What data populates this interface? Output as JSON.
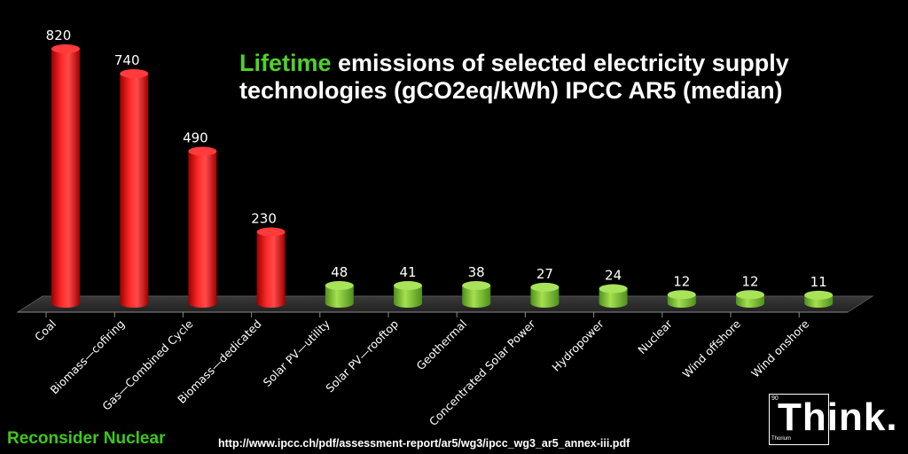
{
  "chart_data": {
    "type": "bar",
    "title_highlight": "Lifetime",
    "title_rest": " emissions of selected electricity supply technologies (gCO2eq/kWh) IPCC AR5 (median)",
    "categories": [
      "Coal",
      "Biomass—cofiring",
      "Gas—Combined Cycle",
      "Biomass—dedicated",
      "Solar PV—utility",
      "Solar PV—rooftop",
      "Geothermal",
      "Concentrated Solar Power",
      "Hydropower",
      "Nuclear",
      "Wind offshore",
      "Wind onshore"
    ],
    "values": [
      820,
      740,
      490,
      230,
      48,
      41,
      38,
      27,
      24,
      12,
      12,
      11
    ],
    "data_labels": [
      "820",
      "740",
      "490",
      "230",
      "48",
      "41",
      "38",
      "27",
      "24",
      "12",
      "12",
      "11"
    ],
    "bar_colors": [
      "#ff1a1a",
      "#ff1a1a",
      "#ff1a1a",
      "#ff1a1a",
      "#8fd13c",
      "#8fd13c",
      "#8fd13c",
      "#8fd13c",
      "#8fd13c",
      "#8fd13c",
      "#8fd13c",
      "#8fd13c"
    ],
    "ylim": [
      0,
      820
    ],
    "grid": false,
    "legend": "none"
  },
  "footer": {
    "left_text": "Reconsider Nuclear",
    "source_url": "http://www.ipcc.ch/pdf/assessment-report/ar5/wg3/ipcc_wg3_ar5_annex-iii.pdf"
  },
  "logo": {
    "word": "Think.",
    "atomic_number": "90",
    "element_name": "Thorium"
  },
  "colors": {
    "background": "#000000",
    "highlight": "#4fd12a",
    "floor": "#2c2c2c"
  }
}
